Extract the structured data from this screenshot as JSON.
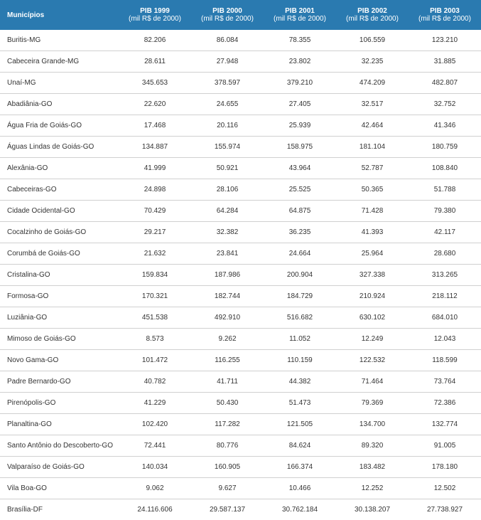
{
  "header_bg": "#2a7ab0",
  "header_color": "#ffffff",
  "border_color": "#d0d0d0",
  "text_color": "#333333",
  "font_size_header": 10,
  "font_size_body": 10,
  "col_label": "Municípios",
  "columns": [
    {
      "title": "PIB 1999",
      "sub": "(mil R$ de 2000)"
    },
    {
      "title": "PIB 2000",
      "sub": "(mil R$ de 2000)"
    },
    {
      "title": "PIB 2001",
      "sub": "(mil R$ de 2000)"
    },
    {
      "title": "PIB 2002",
      "sub": "(mil R$ de 2000)"
    },
    {
      "title": "PIB 2003",
      "sub": "(mil R$ de 2000)"
    }
  ],
  "rows": [
    {
      "name": "Buritis-MG",
      "v": [
        "82.206",
        "86.084",
        "78.355",
        "106.559",
        "123.210"
      ]
    },
    {
      "name": "Cabeceira Grande-MG",
      "v": [
        "28.611",
        "27.948",
        "23.802",
        "32.235",
        "31.885"
      ]
    },
    {
      "name": "Unaí-MG",
      "v": [
        "345.653",
        "378.597",
        "379.210",
        "474.209",
        "482.807"
      ]
    },
    {
      "name": "Abadiânia-GO",
      "v": [
        "22.620",
        "24.655",
        "27.405",
        "32.517",
        "32.752"
      ]
    },
    {
      "name": "Água Fria de Goiás-GO",
      "v": [
        "17.468",
        "20.116",
        "25.939",
        "42.464",
        "41.346"
      ]
    },
    {
      "name": "Águas Lindas de Goiás-GO",
      "v": [
        "134.887",
        "155.974",
        "158.975",
        "181.104",
        "180.759"
      ]
    },
    {
      "name": "Alexânia-GO",
      "v": [
        "41.999",
        "50.921",
        "43.964",
        "52.787",
        "108.840"
      ]
    },
    {
      "name": "Cabeceiras-GO",
      "v": [
        "24.898",
        "28.106",
        "25.525",
        "50.365",
        "51.788"
      ]
    },
    {
      "name": "Cidade Ocidental-GO",
      "v": [
        "70.429",
        "64.284",
        "64.875",
        "71.428",
        "79.380"
      ]
    },
    {
      "name": "Cocalzinho de Goiás-GO",
      "v": [
        "29.217",
        "32.382",
        "36.235",
        "41.393",
        "42.117"
      ]
    },
    {
      "name": "Corumbá de Goiás-GO",
      "v": [
        "21.632",
        "23.841",
        "24.664",
        "25.964",
        "28.680"
      ]
    },
    {
      "name": "Cristalina-GO",
      "v": [
        "159.834",
        "187.986",
        "200.904",
        "327.338",
        "313.265"
      ]
    },
    {
      "name": "Formosa-GO",
      "v": [
        "170.321",
        "182.744",
        "184.729",
        "210.924",
        "218.112"
      ]
    },
    {
      "name": "Luziânia-GO",
      "v": [
        "451.538",
        "492.910",
        "516.682",
        "630.102",
        "684.010"
      ]
    },
    {
      "name": "Mimoso de Goiás-GO",
      "v": [
        "8.573",
        "9.262",
        "11.052",
        "12.249",
        "12.043"
      ]
    },
    {
      "name": "Novo Gama-GO",
      "v": [
        "101.472",
        "116.255",
        "110.159",
        "122.532",
        "118.599"
      ]
    },
    {
      "name": "Padre Bernardo-GO",
      "v": [
        "40.782",
        "41.711",
        "44.382",
        "71.464",
        "73.764"
      ]
    },
    {
      "name": "Pirenópolis-GO",
      "v": [
        "41.229",
        "50.430",
        "51.473",
        "79.369",
        "72.386"
      ]
    },
    {
      "name": "Planaltina-GO",
      "v": [
        "102.420",
        "117.282",
        "121.505",
        "134.700",
        "132.774"
      ]
    },
    {
      "name": "Santo Antônio do Descoberto-GO",
      "v": [
        "72.441",
        "80.776",
        "84.624",
        "89.320",
        "91.005"
      ]
    },
    {
      "name": "Valparaíso de Goiás-GO",
      "v": [
        "140.034",
        "160.905",
        "166.374",
        "183.482",
        "178.180"
      ]
    },
    {
      "name": "Vila Boa-GO",
      "v": [
        "9.062",
        "9.627",
        "10.466",
        "12.252",
        "12.502"
      ]
    },
    {
      "name": "Brasília-DF",
      "v": [
        "24.116.606",
        "29.587.137",
        "30.762.184",
        "30.138.207",
        "27.738.927"
      ]
    }
  ]
}
